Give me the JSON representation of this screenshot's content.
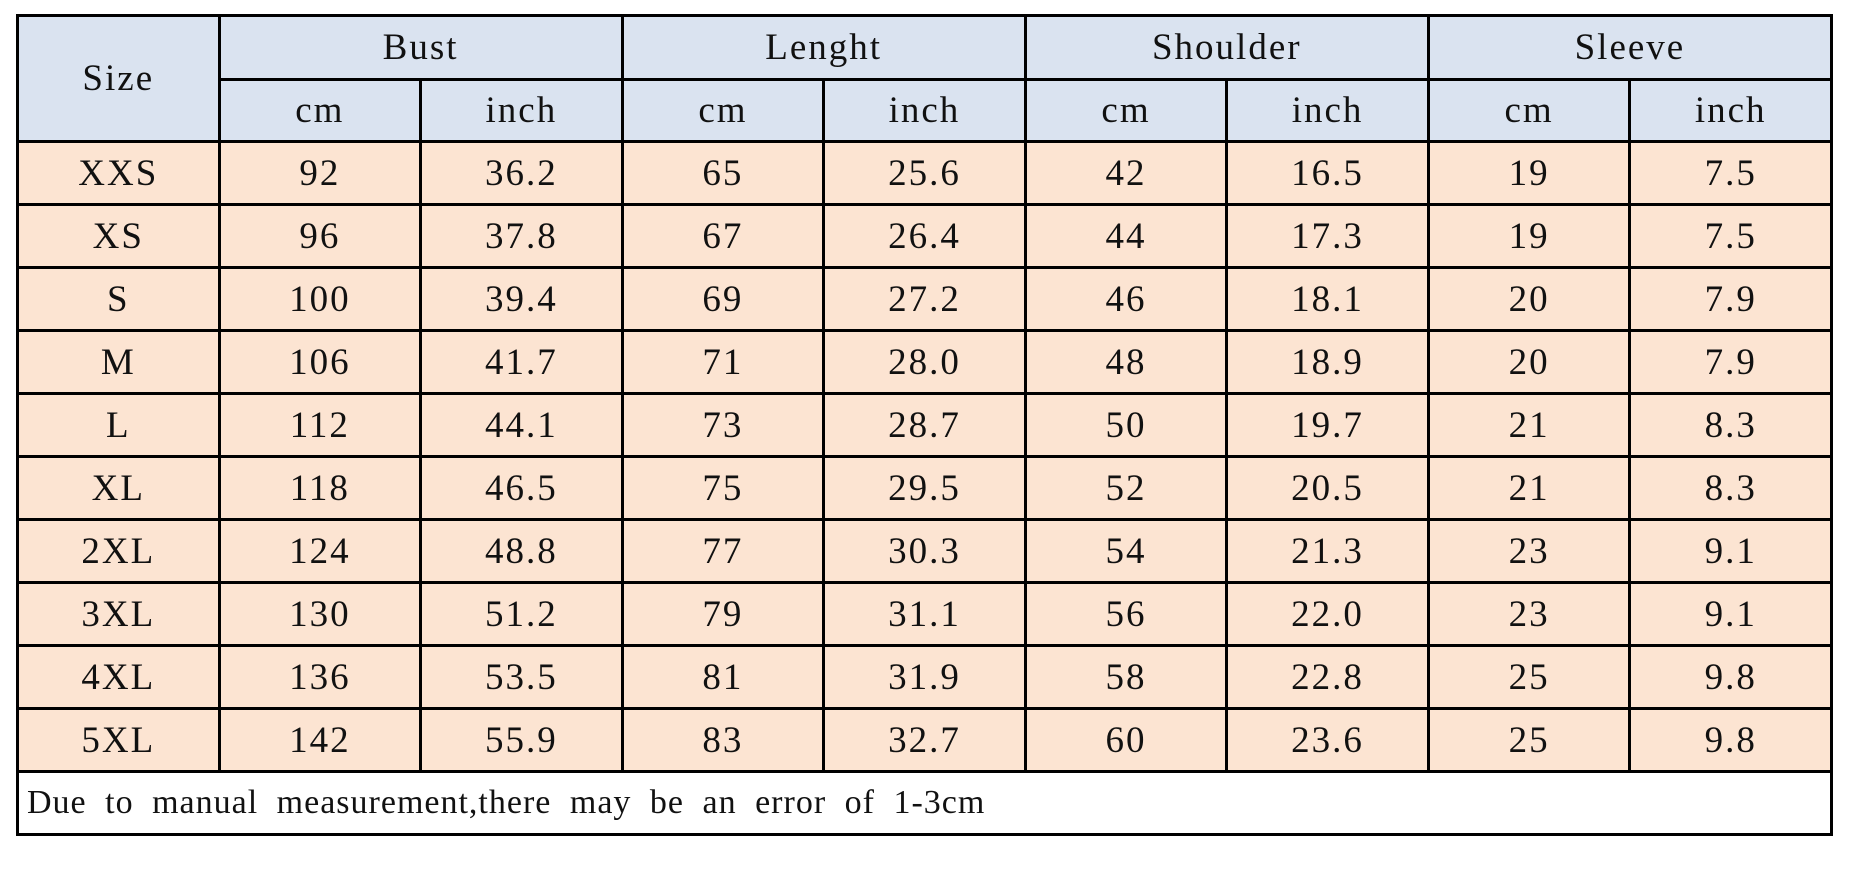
{
  "colors": {
    "header_bg": "#dae3f0",
    "body_bg": "#fce4d2",
    "footnote_bg": "#ffffff",
    "border": "#000000",
    "page_bg": "#ffffff",
    "text": "#111111"
  },
  "chart_data": {
    "type": "table",
    "title": "",
    "corner_header": "Size",
    "column_groups": [
      {
        "label": "Bust",
        "sub": [
          "cm",
          "inch"
        ]
      },
      {
        "label": "Lenght",
        "sub": [
          "cm",
          "inch"
        ]
      },
      {
        "label": "Shoulder",
        "sub": [
          "cm",
          "inch"
        ]
      },
      {
        "label": "Sleeve",
        "sub": [
          "cm",
          "inch"
        ]
      }
    ],
    "columns": [
      "Size",
      "Bust cm",
      "Bust inch",
      "Lenght cm",
      "Lenght inch",
      "Shoulder cm",
      "Shoulder inch",
      "Sleeve cm",
      "Sleeve inch"
    ],
    "rows": [
      {
        "size": "XXS",
        "values": [
          "92",
          "36.2",
          "65",
          "25.6",
          "42",
          "16.5",
          "19",
          "7.5"
        ]
      },
      {
        "size": "XS",
        "values": [
          "96",
          "37.8",
          "67",
          "26.4",
          "44",
          "17.3",
          "19",
          "7.5"
        ]
      },
      {
        "size": "S",
        "values": [
          "100",
          "39.4",
          "69",
          "27.2",
          "46",
          "18.1",
          "20",
          "7.9"
        ]
      },
      {
        "size": "M",
        "values": [
          "106",
          "41.7",
          "71",
          "28.0",
          "48",
          "18.9",
          "20",
          "7.9"
        ]
      },
      {
        "size": "L",
        "values": [
          "112",
          "44.1",
          "73",
          "28.7",
          "50",
          "19.7",
          "21",
          "8.3"
        ]
      },
      {
        "size": "XL",
        "values": [
          "118",
          "46.5",
          "75",
          "29.5",
          "52",
          "20.5",
          "21",
          "8.3"
        ]
      },
      {
        "size": "2XL",
        "values": [
          "124",
          "48.8",
          "77",
          "30.3",
          "54",
          "21.3",
          "23",
          "9.1"
        ]
      },
      {
        "size": "3XL",
        "values": [
          "130",
          "51.2",
          "79",
          "31.1",
          "56",
          "22.0",
          "23",
          "9.1"
        ]
      },
      {
        "size": "4XL",
        "values": [
          "136",
          "53.5",
          "81",
          "31.9",
          "58",
          "22.8",
          "25",
          "9.8"
        ]
      },
      {
        "size": "5XL",
        "values": [
          "142",
          "55.9",
          "83",
          "32.7",
          "60",
          "23.6",
          "25",
          "9.8"
        ]
      }
    ],
    "footnote": "Due to manual measurement,there may be an error of 1-3cm"
  }
}
